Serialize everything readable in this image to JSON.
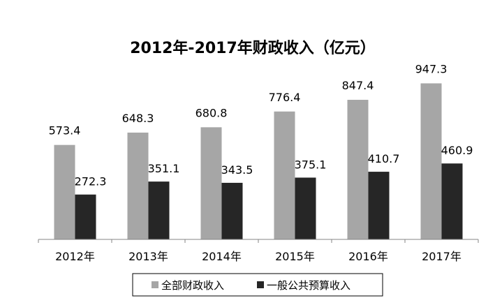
{
  "chart_data": {
    "type": "bar",
    "title": "2012年-2017年财政收入（亿元）",
    "categories": [
      "2012年",
      "2013年",
      "2014年",
      "2015年",
      "2016年",
      "2017年"
    ],
    "series": [
      {
        "name": "全部财政收入",
        "values": [
          573.4,
          648.3,
          680.8,
          776.4,
          847.4,
          947.3
        ],
        "color": "#a6a6a6"
      },
      {
        "name": "一般公共预算收入",
        "values": [
          272.3,
          351.1,
          343.5,
          375.1,
          410.7,
          460.9
        ],
        "color": "#262626"
      }
    ],
    "data_labels": [
      [
        "573.4",
        "648.3",
        "680.8",
        "776.4",
        "847.4",
        "947.3"
      ],
      [
        "272.3",
        "351.1",
        "343.5",
        "375.1",
        "410.7",
        "460.9"
      ]
    ],
    "xlabel": "",
    "ylabel": "",
    "ylim": [
      0,
      1000
    ],
    "grid": false,
    "legend_position": "bottom"
  }
}
